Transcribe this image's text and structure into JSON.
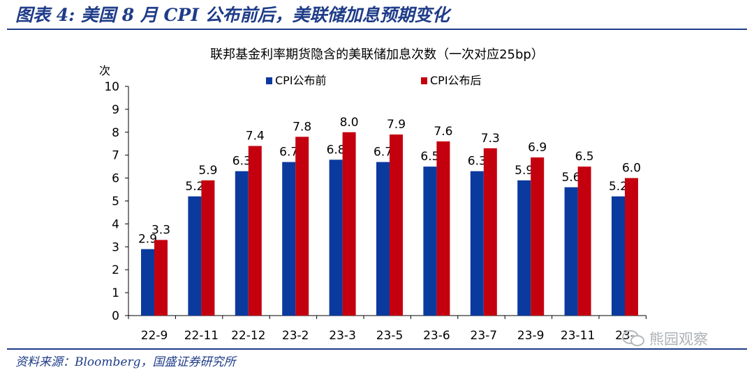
{
  "header": {
    "title": "图表 4:  美国 8 月 CPI 公布前后，美联储加息预期变化"
  },
  "source": "资料来源：Bloomberg，国盛证券研究所",
  "watermark": {
    "text": "熊园观察",
    "icon": "chat-bubbles-icon"
  },
  "colors": {
    "accent": "#1f3c88",
    "series_before": "#0b3a9f",
    "series_after": "#c4000f"
  },
  "chart_data": {
    "type": "bar",
    "title": "联邦基金利率期货隐含的美联储加息次数（一次对应25bp）",
    "ylabel": "次",
    "xlabel": "",
    "ylim": [
      0,
      10
    ],
    "yticks": [
      "0",
      "1",
      "2",
      "3",
      "4",
      "5",
      "6",
      "7",
      "8",
      "9",
      "10"
    ],
    "categories": [
      "22-9",
      "22-11",
      "22-12",
      "23-2",
      "23-3",
      "23-5",
      "23-6",
      "23-7",
      "23-9",
      "23-11",
      "23-12"
    ],
    "category_labels": [
      "22-9",
      "22-11",
      "22-12",
      "23-2",
      "23-3",
      "23-5",
      "23-6",
      "23-7",
      "23-9",
      "23-11",
      "23-"
    ],
    "legend_position": "top-left",
    "grid": false,
    "series": [
      {
        "name": "CPI公布前",
        "color": "#0b3a9f",
        "values": [
          2.9,
          5.2,
          6.3,
          6.7,
          6.8,
          6.7,
          6.5,
          6.3,
          5.9,
          5.6,
          5.2
        ],
        "labels": [
          "2.9",
          "5.2",
          "6.3",
          "6.7",
          "6.8",
          "6.7",
          "6.5",
          "6.3",
          "5.9",
          "5.6",
          "5.2"
        ]
      },
      {
        "name": "CPI公布后",
        "color": "#c4000f",
        "values": [
          3.3,
          5.9,
          7.4,
          7.8,
          8.0,
          7.9,
          7.6,
          7.3,
          6.9,
          6.5,
          6.0
        ],
        "labels": [
          "3.3",
          "5.9",
          "7.4",
          "7.8",
          "8.0",
          "7.9",
          "7.6",
          "7.3",
          "6.9",
          "6.5",
          "6.0"
        ]
      }
    ]
  }
}
